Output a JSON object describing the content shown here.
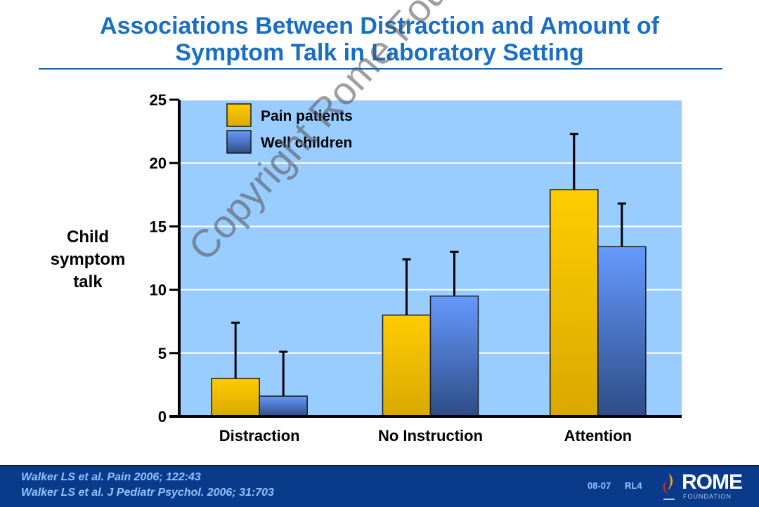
{
  "header": {
    "title_line1": "Associations Between Distraction and Amount of",
    "title_line2": "Symptom Talk in Laboratory Setting"
  },
  "watermark": "Copyright Rome Foundation",
  "footer": {
    "references": [
      "Walker LS et al. Pain 2006; 122:43",
      "Walker LS et al. J Pediatr Psychol. 2006; 31:703"
    ],
    "slide_code": "08-07",
    "slide_id": "RL4",
    "logo_text": "ROME",
    "logo_subtext": "FOUNDATION"
  },
  "chart_data": {
    "type": "bar",
    "title": "Associations Between Distraction and Amount of Symptom Talk in Laboratory Setting",
    "xlabel": "",
    "ylabel_lines": [
      "Child",
      "symptom",
      "talk"
    ],
    "ylabel": "Child symptom talk",
    "ylim": [
      0,
      25
    ],
    "yticks": [
      0,
      5,
      10,
      15,
      20,
      25
    ],
    "grid": true,
    "legend_position": "top-left",
    "categories": [
      "Distraction",
      "No Instruction",
      "Attention"
    ],
    "series": [
      {
        "name": "Pain patients",
        "color": "#f5c000",
        "values": [
          3.0,
          8.0,
          17.9
        ],
        "error_upper": [
          7.4,
          12.4,
          22.3
        ]
      },
      {
        "name": "Well children",
        "color": "#5b8ef0",
        "values": [
          1.6,
          9.5,
          13.4
        ],
        "error_upper": [
          5.1,
          13.0,
          16.8
        ]
      }
    ]
  }
}
